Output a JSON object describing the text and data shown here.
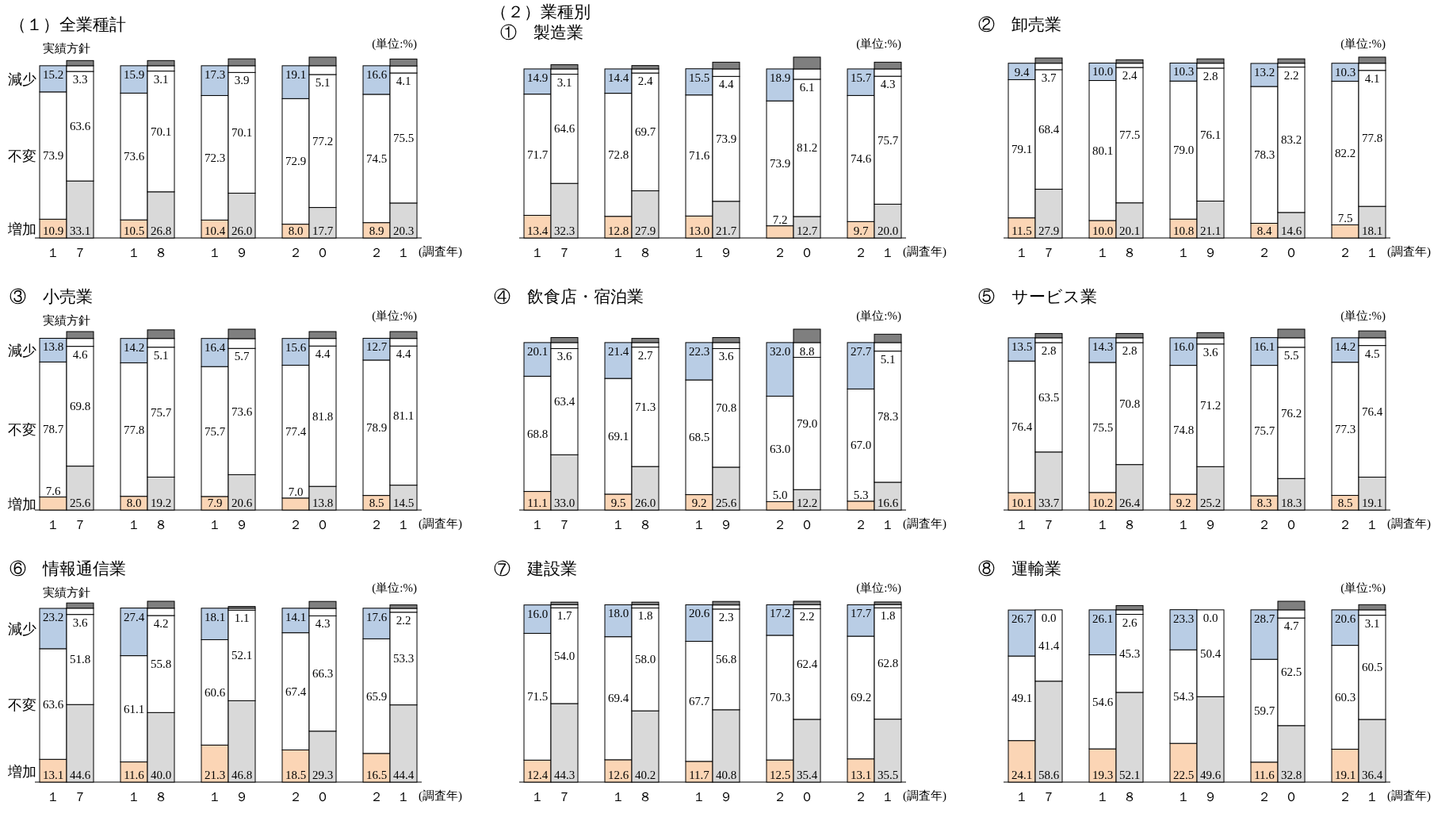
{
  "chart_data": [
    {
      "type": "bar",
      "stacked": true,
      "title": "（１）全業種計",
      "categories": [
        "１",
        "７",
        "１",
        "８",
        "１",
        "９",
        "２",
        "０",
        "２",
        "１"
      ],
      "xlabel": "(調査年)",
      "ylabel": "(単位:%)",
      "annotations": [
        "実績方針"
      ],
      "series": [
        {
          "name": "増加",
          "colors": [
            "#fbd5b5",
            "#d9d9d9",
            "#fbd5b5",
            "#d9d9d9",
            "#fbd5b5",
            "#d9d9d9",
            "#fbd5b5",
            "#d9d9d9",
            "#fbd5b5",
            "#d9d9d9"
          ],
          "values": [
            10.9,
            33.1,
            10.5,
            26.8,
            10.4,
            26.0,
            8.0,
            17.7,
            8.9,
            20.3
          ],
          "value_labels": [
            "10.9",
            "33.1",
            "10.5",
            "26.8",
            "10.4",
            "26.0",
            "8.0",
            "17.7",
            "8.9",
            "20.3"
          ]
        },
        {
          "name": "不変",
          "color": "#ffffff",
          "values": [
            73.9,
            63.6,
            73.6,
            70.1,
            72.3,
            70.1,
            72.9,
            77.2,
            74.5,
            75.5
          ],
          "value_labels": [
            "73.9",
            "63.6",
            "73.6",
            "70.1",
            "72.3",
            "70.1",
            "72.9",
            "77.2",
            "74.5",
            "75.5"
          ]
        },
        {
          "name": "減少",
          "colors": [
            "#b9cde5",
            "#ffffff",
            "#b9cde5",
            "#ffffff",
            "#b9cde5",
            "#ffffff",
            "#b9cde5",
            "#ffffff",
            "#b9cde5",
            "#ffffff"
          ],
          "values": [
            15.2,
            3.3,
            15.9,
            3.1,
            17.3,
            3.9,
            19.1,
            5.1,
            16.6,
            4.1
          ],
          "value_labels": [
            "15.2",
            "3.3",
            "15.9",
            "3.1",
            "17.3",
            "3.9",
            "19.1",
            "5.1",
            "16.6",
            "4.1"
          ]
        },
        {
          "color": "#7f7f7f",
          "values": [
            null,
            3,
            null,
            3,
            null,
            4,
            null,
            5,
            null,
            4
          ]
        }
      ]
    },
    {
      "type": "bar",
      "stacked": true,
      "title": "（２）業種別",
      "subtitle": "①　製造業",
      "categories": [
        "１",
        "７",
        "１",
        "８",
        "１",
        "９",
        "２",
        "０",
        "２",
        "１"
      ],
      "xlabel": "(調査年)",
      "ylabel": "(単位:%)",
      "series": [
        {
          "colors": [
            "#fbd5b5",
            "#d9d9d9",
            "#fbd5b5",
            "#d9d9d9",
            "#fbd5b5",
            "#d9d9d9",
            "#fbd5b5",
            "#d9d9d9",
            "#fbd5b5",
            "#d9d9d9"
          ],
          "values": [
            13.4,
            32.3,
            12.8,
            27.9,
            13.0,
            21.7,
            7.2,
            12.7,
            9.7,
            20.0
          ],
          "value_labels": [
            "13.4",
            "32.3",
            "12.8",
            "27.9",
            "13.0",
            "21.7",
            "7.2",
            "12.7",
            "9.7",
            "20.0"
          ]
        },
        {
          "color": "#ffffff",
          "values": [
            71.7,
            64.6,
            72.8,
            69.7,
            71.6,
            73.9,
            73.9,
            81.2,
            74.6,
            75.7
          ],
          "value_labels": [
            "71.7",
            "64.6",
            "72.8",
            "69.7",
            "71.6",
            "73.9",
            "73.9",
            "81.2",
            "74.6",
            "75.7"
          ]
        },
        {
          "colors": [
            "#b9cde5",
            "#ffffff",
            "#b9cde5",
            "#ffffff",
            "#b9cde5",
            "#ffffff",
            "#b9cde5",
            "#ffffff",
            "#b9cde5",
            "#ffffff"
          ],
          "values": [
            14.9,
            3.1,
            14.4,
            2.4,
            15.5,
            4.4,
            18.9,
            6.1,
            15.7,
            4.3
          ],
          "value_labels": [
            "14.9",
            "3.1",
            "14.4",
            "2.4",
            "15.5",
            "4.4",
            "18.9",
            "6.1",
            "15.7",
            "4.3"
          ]
        },
        {
          "color": "#7f7f7f",
          "values": [
            null,
            2.5,
            null,
            2,
            null,
            4,
            null,
            7,
            null,
            4
          ]
        }
      ]
    },
    {
      "type": "bar",
      "stacked": true,
      "title": "②　卸売業",
      "categories": [
        "１",
        "７",
        "１",
        "８",
        "１",
        "９",
        "２",
        "０",
        "２",
        "１"
      ],
      "xlabel": "(調査年)",
      "ylabel": "(単位:%)",
      "series": [
        {
          "colors": [
            "#fbd5b5",
            "#d9d9d9",
            "#fbd5b5",
            "#d9d9d9",
            "#fbd5b5",
            "#d9d9d9",
            "#fbd5b5",
            "#d9d9d9",
            "#fbd5b5",
            "#d9d9d9"
          ],
          "values": [
            11.5,
            27.9,
            10.0,
            20.1,
            10.8,
            21.1,
            8.4,
            14.6,
            7.5,
            18.1
          ],
          "value_labels": [
            "11.5",
            "27.9",
            "10.0",
            "20.1",
            "10.8",
            "21.1",
            "8.4",
            "14.6",
            "7.5",
            "18.1"
          ]
        },
        {
          "color": "#ffffff",
          "values": [
            79.1,
            68.4,
            80.1,
            77.5,
            79.0,
            76.1,
            78.3,
            83.2,
            82.2,
            77.8
          ],
          "value_labels": [
            "79.1",
            "68.4",
            "80.1",
            "77.5",
            "79.0",
            "76.1",
            "78.3",
            "83.2",
            "82.2",
            "77.8"
          ]
        },
        {
          "colors": [
            "#b9cde5",
            "#ffffff",
            "#b9cde5",
            "#ffffff",
            "#b9cde5",
            "#ffffff",
            "#b9cde5",
            "#ffffff",
            "#b9cde5",
            "#ffffff"
          ],
          "values": [
            9.4,
            3.7,
            10.0,
            2.4,
            10.3,
            2.8,
            13.2,
            2.2,
            10.3,
            4.1
          ],
          "value_labels": [
            "9.4",
            "3.7",
            "10.0",
            "2.4",
            "10.3",
            "2.8",
            "13.2",
            "2.2",
            "10.3",
            "4.1"
          ]
        },
        {
          "color": "#7f7f7f",
          "values": [
            null,
            3,
            null,
            2,
            null,
            2.5,
            null,
            2.5,
            null,
            3.5
          ]
        }
      ]
    },
    {
      "type": "bar",
      "stacked": true,
      "title": "③　小売業",
      "categories": [
        "１",
        "７",
        "１",
        "８",
        "１",
        "９",
        "２",
        "０",
        "２",
        "１"
      ],
      "xlabel": "(調査年)",
      "ylabel": "(単位:%)",
      "annotations": [
        "実績方針"
      ],
      "series": [
        {
          "name": "増加",
          "colors": [
            "#fbd5b5",
            "#d9d9d9",
            "#fbd5b5",
            "#d9d9d9",
            "#fbd5b5",
            "#d9d9d9",
            "#fbd5b5",
            "#d9d9d9",
            "#fbd5b5",
            "#d9d9d9"
          ],
          "values": [
            7.6,
            25.6,
            8.0,
            19.2,
            7.9,
            20.6,
            7.0,
            13.8,
            8.5,
            14.5
          ],
          "value_labels": [
            "7.6",
            "25.6",
            "8.0",
            "19.2",
            "7.9",
            "20.6",
            "7.0",
            "13.8",
            "8.5",
            "14.5"
          ]
        },
        {
          "name": "不変",
          "color": "#ffffff",
          "values": [
            78.7,
            69.8,
            77.8,
            75.7,
            75.7,
            73.6,
            77.4,
            81.8,
            78.9,
            81.1
          ],
          "value_labels": [
            "78.7",
            "69.8",
            "77.8",
            "75.7",
            "75.7",
            "73.6",
            "77.4",
            "81.8",
            "78.9",
            "81.1"
          ]
        },
        {
          "name": "減少",
          "colors": [
            "#b9cde5",
            "#ffffff",
            "#b9cde5",
            "#ffffff",
            "#b9cde5",
            "#ffffff",
            "#b9cde5",
            "#ffffff",
            "#b9cde5",
            "#ffffff"
          ],
          "values": [
            13.8,
            4.6,
            14.2,
            5.1,
            16.4,
            5.7,
            15.6,
            4.4,
            12.7,
            4.4
          ],
          "value_labels": [
            "13.8",
            "4.6",
            "14.2",
            "5.1",
            "16.4",
            "5.7",
            "15.6",
            "4.4",
            "12.7",
            "4.4"
          ]
        },
        {
          "color": "#7f7f7f",
          "values": [
            null,
            4,
            null,
            5,
            null,
            5.5,
            null,
            4,
            null,
            4
          ]
        }
      ]
    },
    {
      "type": "bar",
      "stacked": true,
      "title": "④　飲食店・宿泊業",
      "categories": [
        "１",
        "７",
        "１",
        "８",
        "１",
        "９",
        "２",
        "０",
        "２",
        "１"
      ],
      "xlabel": "(調査年)",
      "ylabel": "(単位:%)",
      "series": [
        {
          "colors": [
            "#fbd5b5",
            "#d9d9d9",
            "#fbd5b5",
            "#d9d9d9",
            "#fbd5b5",
            "#d9d9d9",
            "#fbd5b5",
            "#d9d9d9",
            "#fbd5b5",
            "#d9d9d9"
          ],
          "values": [
            11.1,
            33.0,
            9.5,
            26.0,
            9.2,
            25.6,
            5.0,
            12.2,
            5.3,
            16.6
          ],
          "value_labels": [
            "11.1",
            "33.0",
            "9.5",
            "26.0",
            "9.2",
            "25.6",
            "5.0",
            "12.2",
            "5.3",
            "16.6"
          ]
        },
        {
          "color": "#ffffff",
          "values": [
            68.8,
            63.4,
            69.1,
            71.3,
            68.5,
            70.8,
            63.0,
            79.0,
            67.0,
            78.3
          ],
          "value_labels": [
            "68.8",
            "63.4",
            "69.1",
            "71.3",
            "68.5",
            "70.8",
            "63.0",
            "79.0",
            "67.0",
            "78.3"
          ]
        },
        {
          "colors": [
            "#b9cde5",
            "#ffffff",
            "#b9cde5",
            "#ffffff",
            "#b9cde5",
            "#ffffff",
            "#b9cde5",
            "#ffffff",
            "#b9cde5",
            "#ffffff"
          ],
          "values": [
            20.1,
            3.6,
            21.4,
            2.7,
            22.3,
            3.6,
            32.0,
            8.8,
            27.7,
            5.1
          ],
          "value_labels": [
            "20.1",
            "3.6",
            "21.4",
            "2.7",
            "22.3",
            "3.6",
            "32.0",
            "8.8",
            "27.7",
            "5.1"
          ]
        },
        {
          "color": "#7f7f7f",
          "values": [
            null,
            3,
            null,
            2.5,
            null,
            3,
            null,
            8,
            null,
            5
          ]
        }
      ]
    },
    {
      "type": "bar",
      "stacked": true,
      "title": "⑤　サービス業",
      "categories": [
        "１",
        "７",
        "１",
        "８",
        "１",
        "９",
        "２",
        "０",
        "２",
        "１"
      ],
      "xlabel": "(調査年)",
      "ylabel": "(単位:%)",
      "series": [
        {
          "colors": [
            "#fbd5b5",
            "#d9d9d9",
            "#fbd5b5",
            "#d9d9d9",
            "#fbd5b5",
            "#d9d9d9",
            "#fbd5b5",
            "#d9d9d9",
            "#fbd5b5",
            "#d9d9d9"
          ],
          "values": [
            10.1,
            33.7,
            10.2,
            26.4,
            9.2,
            25.2,
            8.3,
            18.3,
            8.5,
            19.1
          ],
          "value_labels": [
            "10.1",
            "33.7",
            "10.2",
            "26.4",
            "9.2",
            "25.2",
            "8.3",
            "18.3",
            "8.5",
            "19.1"
          ]
        },
        {
          "color": "#ffffff",
          "values": [
            76.4,
            63.5,
            75.5,
            70.8,
            74.8,
            71.2,
            75.7,
            76.2,
            77.3,
            76.4
          ],
          "value_labels": [
            "76.4",
            "63.5",
            "75.5",
            "70.8",
            "74.8",
            "71.2",
            "75.7",
            "76.2",
            "77.3",
            "76.4"
          ]
        },
        {
          "colors": [
            "#b9cde5",
            "#ffffff",
            "#b9cde5",
            "#ffffff",
            "#b9cde5",
            "#ffffff",
            "#b9cde5",
            "#ffffff",
            "#b9cde5",
            "#ffffff"
          ],
          "values": [
            13.5,
            2.8,
            14.3,
            2.8,
            16.0,
            3.6,
            16.1,
            5.5,
            14.2,
            4.5
          ],
          "value_labels": [
            "13.5",
            "2.8",
            "14.3",
            "2.8",
            "16.0",
            "3.6",
            "16.1",
            "5.5",
            "14.2",
            "4.5"
          ]
        },
        {
          "color": "#7f7f7f",
          "values": [
            null,
            2.5,
            null,
            2.5,
            null,
            3,
            null,
            5,
            null,
            4
          ]
        }
      ]
    },
    {
      "type": "bar",
      "stacked": true,
      "title": "⑥　情報通信業",
      "categories": [
        "１",
        "７",
        "１",
        "８",
        "１",
        "９",
        "２",
        "０",
        "２",
        "１"
      ],
      "xlabel": "(調査年)",
      "ylabel": "(単位:%)",
      "annotations": [
        "実績方針"
      ],
      "series": [
        {
          "name": "増加",
          "colors": [
            "#fbd5b5",
            "#d9d9d9",
            "#fbd5b5",
            "#d9d9d9",
            "#fbd5b5",
            "#d9d9d9",
            "#fbd5b5",
            "#d9d9d9",
            "#fbd5b5",
            "#d9d9d9"
          ],
          "values": [
            13.1,
            44.6,
            11.6,
            40.0,
            21.3,
            46.8,
            18.5,
            29.3,
            16.5,
            44.4
          ],
          "value_labels": [
            "13.1",
            "44.6",
            "11.6",
            "40.0",
            "21.3",
            "46.8",
            "18.5",
            "29.3",
            "16.5",
            "44.4"
          ]
        },
        {
          "name": "不変",
          "color": "#ffffff",
          "values": [
            63.6,
            51.8,
            61.1,
            55.8,
            60.6,
            52.1,
            67.4,
            66.3,
            65.9,
            53.3
          ],
          "value_labels": [
            "63.6",
            "51.8",
            "61.1",
            "55.8",
            "60.6",
            "52.1",
            "67.4",
            "66.3",
            "65.9",
            "53.3"
          ]
        },
        {
          "name": "減少",
          "colors": [
            "#b9cde5",
            "#ffffff",
            "#b9cde5",
            "#ffffff",
            "#b9cde5",
            "#ffffff",
            "#b9cde5",
            "#ffffff",
            "#b9cde5",
            "#ffffff"
          ],
          "values": [
            23.2,
            3.6,
            27.4,
            4.2,
            18.1,
            1.1,
            14.1,
            4.3,
            17.6,
            2.2
          ],
          "value_labels": [
            "23.2",
            "3.6",
            "27.4",
            "4.2",
            "18.1",
            "1.1",
            "14.1",
            "4.3",
            "17.6",
            "2.2"
          ]
        },
        {
          "color": "#7f7f7f",
          "values": [
            null,
            3,
            null,
            4,
            null,
            1,
            null,
            4,
            null,
            2
          ]
        }
      ]
    },
    {
      "type": "bar",
      "stacked": true,
      "title": "⑦　建設業",
      "categories": [
        "１",
        "７",
        "１",
        "８",
        "１",
        "９",
        "２",
        "０",
        "２",
        "１"
      ],
      "xlabel": "(調査年)",
      "ylabel": "(単位:%)",
      "series": [
        {
          "colors": [
            "#fbd5b5",
            "#d9d9d9",
            "#fbd5b5",
            "#d9d9d9",
            "#fbd5b5",
            "#d9d9d9",
            "#fbd5b5",
            "#d9d9d9",
            "#fbd5b5",
            "#d9d9d9"
          ],
          "values": [
            12.4,
            44.3,
            12.6,
            40.2,
            11.7,
            40.8,
            12.5,
            35.4,
            13.1,
            35.5
          ],
          "value_labels": [
            "12.4",
            "44.3",
            "12.6",
            "40.2",
            "11.7",
            "40.8",
            "12.5",
            "35.4",
            "13.1",
            "35.5"
          ]
        },
        {
          "color": "#ffffff",
          "values": [
            71.5,
            54.0,
            69.4,
            58.0,
            67.7,
            56.8,
            70.3,
            62.4,
            69.2,
            62.8
          ],
          "value_labels": [
            "71.5",
            "54.0",
            "69.4",
            "58.0",
            "67.7",
            "56.8",
            "70.3",
            "62.4",
            "69.2",
            "62.8"
          ]
        },
        {
          "colors": [
            "#b9cde5",
            "#ffffff",
            "#b9cde5",
            "#ffffff",
            "#b9cde5",
            "#ffffff",
            "#b9cde5",
            "#ffffff",
            "#b9cde5",
            "#ffffff"
          ],
          "values": [
            16.0,
            1.7,
            18.0,
            1.8,
            20.6,
            2.3,
            17.2,
            2.2,
            17.7,
            1.8
          ],
          "value_labels": [
            "16.0",
            "1.7",
            "18.0",
            "1.8",
            "20.6",
            "2.3",
            "17.2",
            "2.2",
            "17.7",
            "1.8"
          ]
        },
        {
          "color": "#7f7f7f",
          "values": [
            null,
            1.5,
            null,
            1.5,
            null,
            2,
            null,
            2,
            null,
            1.5
          ]
        }
      ]
    },
    {
      "type": "bar",
      "stacked": true,
      "title": "⑧　運輸業",
      "categories": [
        "１",
        "７",
        "１",
        "８",
        "１",
        "９",
        "２",
        "０",
        "２",
        "１"
      ],
      "xlabel": "(調査年)",
      "ylabel": "(単位:%)",
      "series": [
        {
          "colors": [
            "#fbd5b5",
            "#d9d9d9",
            "#fbd5b5",
            "#d9d9d9",
            "#fbd5b5",
            "#d9d9d9",
            "#fbd5b5",
            "#d9d9d9",
            "#fbd5b5",
            "#d9d9d9"
          ],
          "values": [
            24.1,
            58.6,
            19.3,
            52.1,
            22.5,
            49.6,
            11.6,
            32.8,
            19.1,
            36.4
          ],
          "value_labels": [
            "24.1",
            "58.6",
            "19.3",
            "52.1",
            "22.5",
            "49.6",
            "11.6",
            "32.8",
            "19.1",
            "36.4"
          ]
        },
        {
          "color": "#ffffff",
          "values": [
            49.1,
            41.4,
            54.6,
            45.3,
            54.3,
            50.4,
            59.7,
            62.5,
            60.3,
            60.5
          ],
          "value_labels": [
            "49.1",
            "41.4",
            "54.6",
            "45.3",
            "54.3",
            "50.4",
            "59.7",
            "62.5",
            "60.3",
            "60.5"
          ]
        },
        {
          "colors": [
            "#b9cde5",
            "#ffffff",
            "#b9cde5",
            "#ffffff",
            "#b9cde5",
            "#ffffff",
            "#b9cde5",
            "#ffffff",
            "#b9cde5",
            "#ffffff"
          ],
          "values": [
            26.7,
            0.0,
            26.1,
            2.6,
            23.3,
            0.0,
            28.7,
            4.7,
            20.6,
            3.1
          ],
          "value_labels": [
            "26.7",
            "0.0",
            "26.1",
            "2.6",
            "23.3",
            "0.0",
            "28.7",
            "4.7",
            "20.6",
            "3.1"
          ]
        },
        {
          "color": "#7f7f7f",
          "values": [
            null,
            null,
            null,
            2.5,
            null,
            null,
            null,
            5,
            null,
            3
          ]
        }
      ]
    }
  ]
}
